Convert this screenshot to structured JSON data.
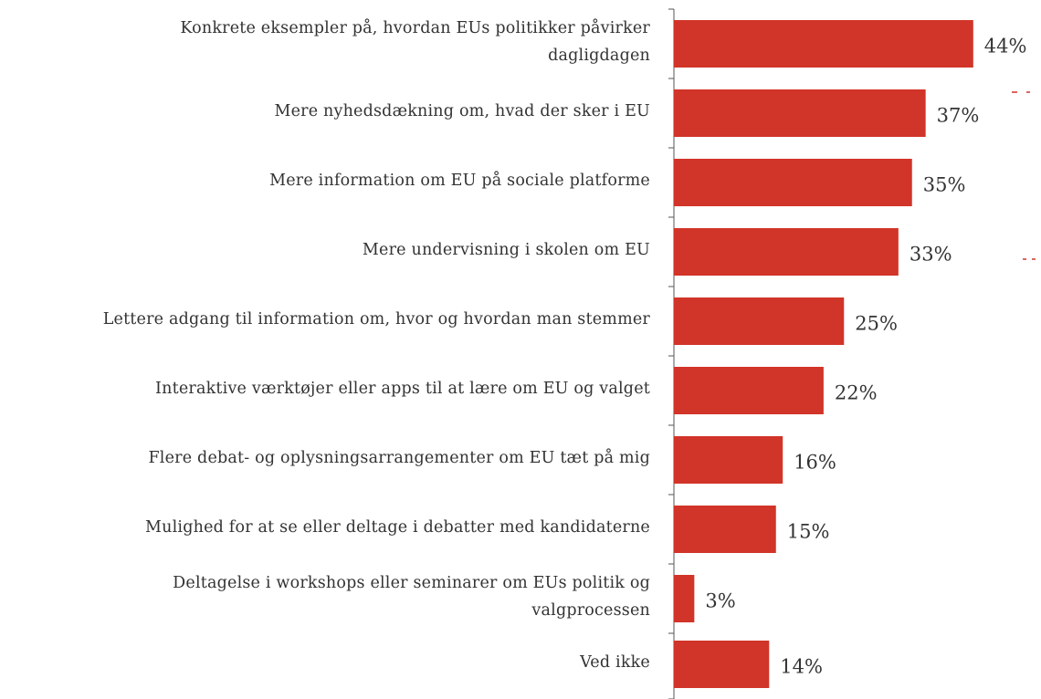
{
  "chart_data": {
    "type": "barh",
    "categories": [
      "Konkrete eksempler på, hvordan EUs politikker påvirker dagligdagen",
      "Mere nyhedsdækning om, hvad der sker i EU",
      "Mere information om EU på sociale platforme",
      "Mere undervisning i skolen om EU",
      "Lettere adgang til information om, hvor og hvordan man stemmer",
      "Interaktive værktøjer eller apps til at lære om EU og valget",
      "Flere debat- og oplysningsarrangementer om EU tæt på mig",
      "Mulighed for at se eller deltage i debatter med kandidaterne",
      "Deltagelse i workshops eller seminarer om EUs politik og valgprocessen",
      "Ved ikke"
    ],
    "values": [
      44,
      37,
      35,
      33,
      25,
      22,
      16,
      15,
      3,
      14
    ],
    "value_labels": [
      "44%",
      "37%",
      "35%",
      "33%",
      "25%",
      "22%",
      "16%",
      "15%",
      "3%",
      "14%"
    ],
    "color": "#d13428"
  }
}
